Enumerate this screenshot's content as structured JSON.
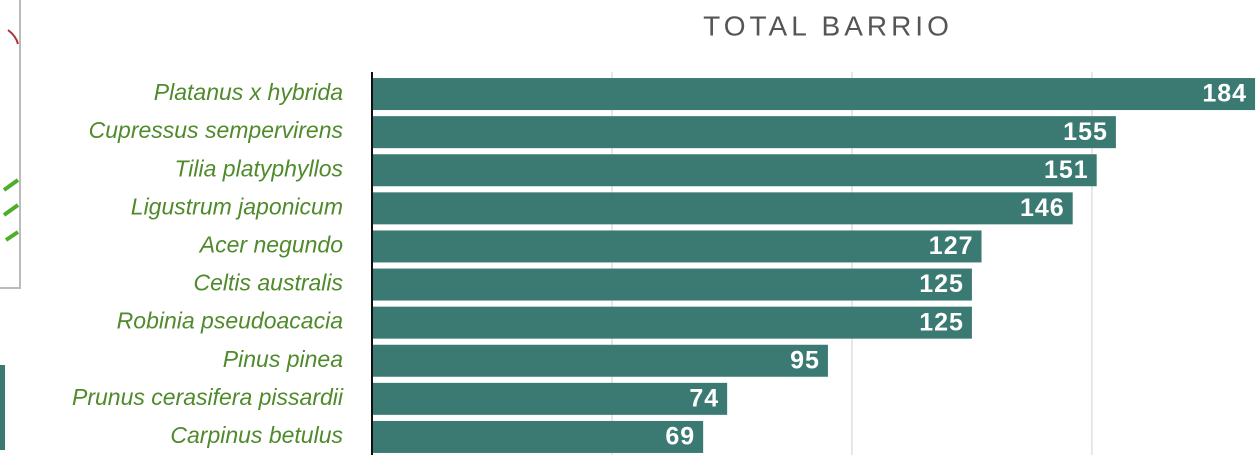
{
  "chart_data": {
    "type": "bar",
    "orientation": "horizontal",
    "title": "TOTAL BARRIO",
    "categories": [
      "Platanus x hybrida",
      "Cupressus sempervirens",
      "Tilia platyphyllos",
      "Ligustrum japonicum",
      "Acer negundo",
      "Celtis australis",
      "Robinia pseudoacacia",
      "Pinus pinea",
      "Prunus cerasifera pissardii",
      "Carpinus betulus"
    ],
    "values": [
      184,
      155,
      151,
      146,
      127,
      125,
      125,
      95,
      74,
      69
    ],
    "color": "#3a7a72",
    "xlim": [
      0,
      184.4
    ],
    "xticks": [
      0,
      50,
      100,
      150
    ],
    "grid": true
  }
}
